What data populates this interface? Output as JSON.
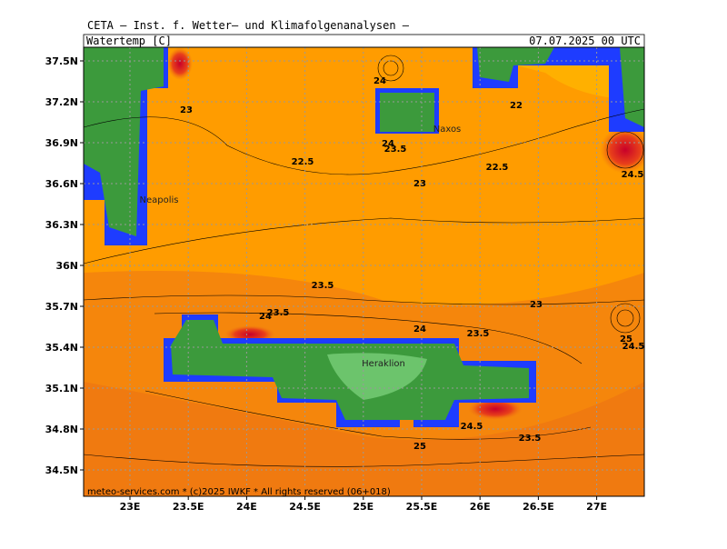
{
  "header": {
    "title": "CETA – Inst. f. Wetter– und Klimafolgenanalysen –",
    "parameter": "Watertemp [C]",
    "valid_time": "07.07.2025 00 UTC"
  },
  "axes": {
    "lat_labels": [
      "37.5N",
      "37.2N",
      "36.9N",
      "36.6N",
      "36.3N",
      "36N",
      "35.7N",
      "35.4N",
      "35.1N",
      "34.8N",
      "34.5N"
    ],
    "lon_labels": [
      "23E",
      "23.5E",
      "24E",
      "24.5E",
      "25E",
      "25.5E",
      "26E",
      "26.5E",
      "27E"
    ]
  },
  "contour_labels": [
    "23",
    "22.5",
    "24",
    "22",
    "24",
    "23.5",
    "22.5",
    "23",
    "24.5",
    "23.5",
    "23",
    "24",
    "23.5",
    "24",
    "23.5",
    "25",
    "24.5",
    "24.5",
    "23.5",
    "25"
  ],
  "places": [
    "Naxos",
    "Neapolis",
    "Heraklion"
  ],
  "footer": "meteo-services.com * (c)2025 IWKF * All rights reserved (06+018)"
}
